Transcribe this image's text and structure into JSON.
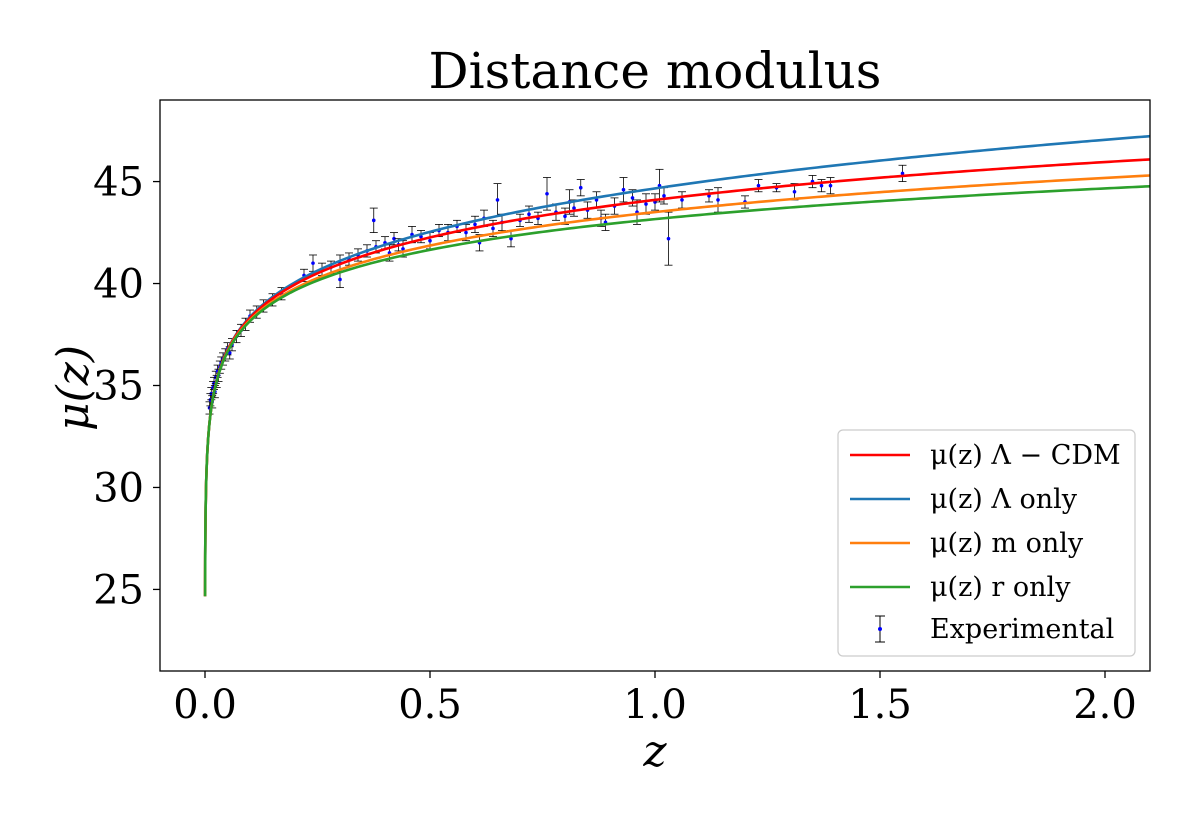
{
  "chart_data": {
    "type": "line",
    "title": "Distance modulus",
    "xlabel": "z",
    "ylabel": "μ(z)",
    "xlim": [
      -0.1,
      2.1
    ],
    "ylim": [
      21,
      49
    ],
    "x_ticks": [
      0.0,
      0.5,
      1.0,
      1.5,
      2.0
    ],
    "x_tick_labels": [
      "0.0",
      "0.5",
      "1.0",
      "1.5",
      "2.0"
    ],
    "y_ticks": [
      25,
      30,
      35,
      40,
      45
    ],
    "y_tick_labels": [
      "25",
      "30",
      "35",
      "40",
      "45"
    ],
    "grid": false,
    "legend_position": "lower-right",
    "series": [
      {
        "name": "μ(z) Λ − CDM",
        "color": "#ff0000",
        "omega_m": 0.3,
        "omega_l": 0.7,
        "x": [
          0.01,
          0.05,
          0.1,
          0.2,
          0.3,
          0.5,
          0.75,
          1.0,
          1.25,
          1.5,
          1.75,
          2.0,
          2.1
        ],
        "y": [
          33.2,
          36.7,
          38.3,
          40.0,
          41.0,
          42.3,
          43.3,
          44.1,
          44.7,
          45.2,
          45.7,
          46.1,
          46.2
        ]
      },
      {
        "name": "μ(z) Λ only",
        "color": "#1f77b4",
        "omega_m": 0.0,
        "omega_l": 1.0,
        "x": [
          0.01,
          0.05,
          0.1,
          0.2,
          0.3,
          0.5,
          0.75,
          1.0,
          1.25,
          1.5,
          1.75,
          2.0,
          2.1
        ],
        "y": [
          33.2,
          36.7,
          38.4,
          40.2,
          41.3,
          42.8,
          43.9,
          44.8,
          45.5,
          46.1,
          46.6,
          47.1,
          47.3
        ]
      },
      {
        "name": "μ(z) m only",
        "color": "#ff7f0e",
        "omega_m": 1.0,
        "omega_l": 0.0,
        "x": [
          0.01,
          0.05,
          0.1,
          0.2,
          0.3,
          0.5,
          0.75,
          1.0,
          1.25,
          1.5,
          1.75,
          2.0,
          2.1
        ],
        "y": [
          33.2,
          36.6,
          38.1,
          39.7,
          40.6,
          41.9,
          42.8,
          43.5,
          44.0,
          44.5,
          44.9,
          45.3,
          45.4
        ]
      },
      {
        "name": "μ(z) r only",
        "color": "#2ca02c",
        "omega_r": 1.0,
        "x": [
          0.01,
          0.05,
          0.1,
          0.2,
          0.3,
          0.5,
          0.75,
          1.0,
          1.25,
          1.5,
          1.75,
          2.0,
          2.1
        ],
        "y": [
          33.2,
          36.6,
          38.1,
          39.7,
          40.6,
          41.9,
          42.9,
          43.6,
          44.2,
          44.7,
          45.1,
          45.5,
          45.6
        ]
      }
    ],
    "experimental": {
      "name": "Experimental",
      "color": "#0000ff",
      "errorbar_color": "#000000",
      "points": [
        {
          "x": 0.01,
          "y": 33.9,
          "err": 0.3
        },
        {
          "x": 0.012,
          "y": 34.3,
          "err": 0.3
        },
        {
          "x": 0.014,
          "y": 34.6,
          "err": 0.3
        },
        {
          "x": 0.016,
          "y": 34.2,
          "err": 0.3
        },
        {
          "x": 0.018,
          "y": 34.9,
          "err": 0.3
        },
        {
          "x": 0.02,
          "y": 35.1,
          "err": 0.3
        },
        {
          "x": 0.022,
          "y": 34.7,
          "err": 0.3
        },
        {
          "x": 0.024,
          "y": 35.4,
          "err": 0.3
        },
        {
          "x": 0.026,
          "y": 35.2,
          "err": 0.3
        },
        {
          "x": 0.028,
          "y": 35.7,
          "err": 0.3
        },
        {
          "x": 0.03,
          "y": 35.5,
          "err": 0.3
        },
        {
          "x": 0.033,
          "y": 35.9,
          "err": 0.3
        },
        {
          "x": 0.036,
          "y": 36.1,
          "err": 0.3
        },
        {
          "x": 0.04,
          "y": 36.3,
          "err": 0.3
        },
        {
          "x": 0.045,
          "y": 36.5,
          "err": 0.3
        },
        {
          "x": 0.05,
          "y": 36.8,
          "err": 0.3
        },
        {
          "x": 0.055,
          "y": 36.6,
          "err": 0.3
        },
        {
          "x": 0.06,
          "y": 37.0,
          "err": 0.3
        },
        {
          "x": 0.07,
          "y": 37.4,
          "err": 0.3
        },
        {
          "x": 0.08,
          "y": 37.7,
          "err": 0.3
        },
        {
          "x": 0.09,
          "y": 38.0,
          "err": 0.3
        },
        {
          "x": 0.1,
          "y": 38.4,
          "err": 0.3
        },
        {
          "x": 0.115,
          "y": 38.6,
          "err": 0.3
        },
        {
          "x": 0.13,
          "y": 38.9,
          "err": 0.3
        },
        {
          "x": 0.15,
          "y": 39.2,
          "err": 0.3
        },
        {
          "x": 0.17,
          "y": 39.5,
          "err": 0.3
        },
        {
          "x": 0.22,
          "y": 40.4,
          "err": 0.3
        },
        {
          "x": 0.24,
          "y": 41.0,
          "err": 0.4
        },
        {
          "x": 0.26,
          "y": 40.7,
          "err": 0.3
        },
        {
          "x": 0.28,
          "y": 40.8,
          "err": 0.3
        },
        {
          "x": 0.3,
          "y": 40.2,
          "err": 0.4
        },
        {
          "x": 0.3,
          "y": 41.0,
          "err": 0.4
        },
        {
          "x": 0.32,
          "y": 41.2,
          "err": 0.3
        },
        {
          "x": 0.34,
          "y": 41.4,
          "err": 0.3
        },
        {
          "x": 0.36,
          "y": 41.6,
          "err": 0.3
        },
        {
          "x": 0.375,
          "y": 43.1,
          "err": 0.6
        },
        {
          "x": 0.38,
          "y": 41.8,
          "err": 0.3
        },
        {
          "x": 0.4,
          "y": 42.0,
          "err": 0.3
        },
        {
          "x": 0.41,
          "y": 41.5,
          "err": 0.4
        },
        {
          "x": 0.42,
          "y": 42.2,
          "err": 0.3
        },
        {
          "x": 0.43,
          "y": 41.9,
          "err": 0.3
        },
        {
          "x": 0.44,
          "y": 41.7,
          "err": 0.4
        },
        {
          "x": 0.46,
          "y": 42.4,
          "err": 0.4
        },
        {
          "x": 0.48,
          "y": 42.3,
          "err": 0.3
        },
        {
          "x": 0.5,
          "y": 42.1,
          "err": 0.4
        },
        {
          "x": 0.52,
          "y": 42.6,
          "err": 0.3
        },
        {
          "x": 0.54,
          "y": 42.5,
          "err": 0.4
        },
        {
          "x": 0.56,
          "y": 42.8,
          "err": 0.3
        },
        {
          "x": 0.58,
          "y": 42.5,
          "err": 0.4
        },
        {
          "x": 0.6,
          "y": 42.9,
          "err": 0.4
        },
        {
          "x": 0.61,
          "y": 42.0,
          "err": 0.4
        },
        {
          "x": 0.62,
          "y": 43.2,
          "err": 0.4
        },
        {
          "x": 0.64,
          "y": 42.7,
          "err": 0.4
        },
        {
          "x": 0.65,
          "y": 44.1,
          "err": 0.8
        },
        {
          "x": 0.66,
          "y": 43.0,
          "err": 0.4
        },
        {
          "x": 0.68,
          "y": 42.2,
          "err": 0.4
        },
        {
          "x": 0.7,
          "y": 43.1,
          "err": 0.3
        },
        {
          "x": 0.72,
          "y": 43.4,
          "err": 0.4
        },
        {
          "x": 0.74,
          "y": 43.2,
          "err": 0.3
        },
        {
          "x": 0.76,
          "y": 44.4,
          "err": 0.8
        },
        {
          "x": 0.78,
          "y": 43.5,
          "err": 0.4
        },
        {
          "x": 0.8,
          "y": 43.3,
          "err": 0.4
        },
        {
          "x": 0.81,
          "y": 44.0,
          "err": 0.6
        },
        {
          "x": 0.82,
          "y": 43.7,
          "err": 0.4
        },
        {
          "x": 0.835,
          "y": 44.7,
          "err": 0.4
        },
        {
          "x": 0.85,
          "y": 43.6,
          "err": 0.4
        },
        {
          "x": 0.87,
          "y": 44.1,
          "err": 0.4
        },
        {
          "x": 0.88,
          "y": 43.2,
          "err": 0.4
        },
        {
          "x": 0.89,
          "y": 43.0,
          "err": 0.4
        },
        {
          "x": 0.91,
          "y": 43.8,
          "err": 0.4
        },
        {
          "x": 0.93,
          "y": 44.6,
          "err": 0.6
        },
        {
          "x": 0.95,
          "y": 44.2,
          "err": 0.4
        },
        {
          "x": 0.96,
          "y": 43.5,
          "err": 0.6
        },
        {
          "x": 0.98,
          "y": 43.9,
          "err": 0.5
        },
        {
          "x": 1.0,
          "y": 44.0,
          "err": 0.4
        },
        {
          "x": 1.01,
          "y": 44.8,
          "err": 0.8
        },
        {
          "x": 1.02,
          "y": 44.3,
          "err": 0.4
        },
        {
          "x": 1.03,
          "y": 42.2,
          "err": 1.3
        },
        {
          "x": 1.06,
          "y": 44.1,
          "err": 0.4
        },
        {
          "x": 1.12,
          "y": 44.3,
          "err": 0.3
        },
        {
          "x": 1.14,
          "y": 44.1,
          "err": 0.6
        },
        {
          "x": 1.2,
          "y": 44.0,
          "err": 0.3
        },
        {
          "x": 1.23,
          "y": 44.8,
          "err": 0.3
        },
        {
          "x": 1.27,
          "y": 44.7,
          "err": 0.2
        },
        {
          "x": 1.31,
          "y": 44.5,
          "err": 0.4
        },
        {
          "x": 1.35,
          "y": 45.0,
          "err": 0.3
        },
        {
          "x": 1.37,
          "y": 44.8,
          "err": 0.3
        },
        {
          "x": 1.39,
          "y": 44.8,
          "err": 0.4
        },
        {
          "x": 1.55,
          "y": 45.4,
          "err": 0.4
        }
      ]
    }
  }
}
